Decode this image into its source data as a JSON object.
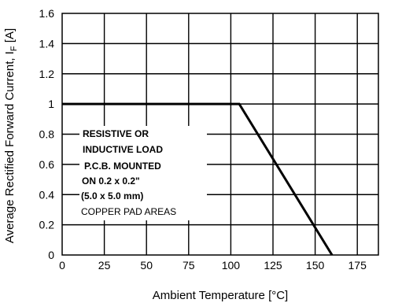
{
  "chart_data": {
    "type": "line",
    "title": "",
    "xlabel": "Ambient Temperature [°C]",
    "ylabel": {
      "main": "Average Rectified Forward Current, I",
      "sub": "F",
      "unit": " [A]"
    },
    "xlim": [
      0,
      187.5
    ],
    "ylim": [
      0,
      1.6
    ],
    "x_ticks": [
      0,
      25,
      50,
      75,
      100,
      125,
      150,
      175
    ],
    "y_ticks": [
      0,
      0.2,
      0.4,
      0.6,
      0.8,
      1,
      1.2,
      1.4,
      1.6
    ],
    "x_tick_labels": [
      "0",
      "25",
      "50",
      "75",
      "100",
      "125",
      "150",
      "175"
    ],
    "y_tick_labels": [
      "0",
      "0.2",
      "0.4",
      "0.6",
      "0.8",
      "1",
      "1.2",
      "1.4",
      "1.6"
    ],
    "grid": true,
    "series": [
      {
        "color": "#000000",
        "x": [
          0,
          105,
          160
        ],
        "y": [
          1,
          1,
          0
        ]
      }
    ],
    "annotations": [
      {
        "text": "RESISTIVE OR",
        "bold": true
      },
      {
        "text": "INDUCTIVE LOAD",
        "bold": true
      },
      {
        "text": "P.C.B. MOUNTED",
        "bold": true
      },
      {
        "text": "ON 0.2 x 0.2\"",
        "bold": true
      },
      {
        "text": "(5.0 x 5.0 mm)",
        "bold": true
      },
      {
        "text": "COPPER PAD AREAS",
        "bold": false
      }
    ]
  }
}
